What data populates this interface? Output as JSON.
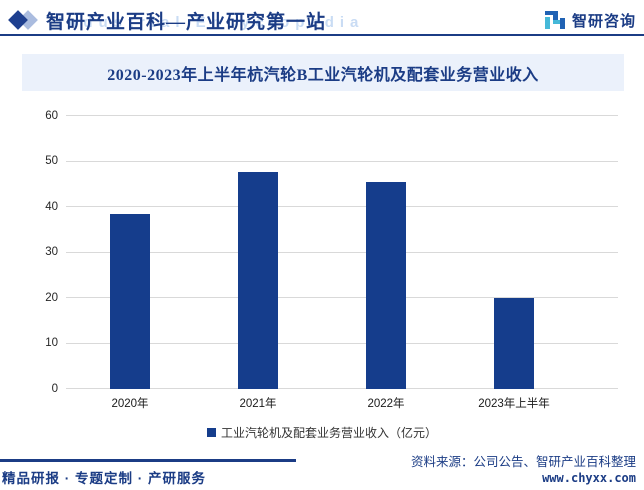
{
  "header": {
    "brand_title": "智研产业百科—产业研究第一站",
    "brand_watermark": "Industrial Encyclopedia",
    "logo_text": "智研咨询"
  },
  "chart_title": "2020-2023年上半年杭汽轮B工业汽轮机及配套业务营业收入",
  "chart_data": {
    "type": "bar",
    "categories": [
      "2020年",
      "2021年",
      "2022年",
      "2023年上半年"
    ],
    "values": [
      38.5,
      47.8,
      45.6,
      20
    ],
    "series_name": "工业汽轮机及配套业务营业收入（亿元）",
    "title": "2020-2023年上半年杭汽轮B工业汽轮机及配套业务营业收入",
    "xlabel": "",
    "ylabel": "",
    "ylim": [
      0,
      60
    ],
    "yticks": [
      0,
      10,
      20,
      30,
      40,
      50,
      60
    ],
    "bar_color": "#153d8c",
    "grid": true,
    "legend_position": "bottom"
  },
  "colors": {
    "accent_navy": "#1b3c85",
    "bar": "#153d8c",
    "gridline": "#d9d9d9",
    "title_box_bg": "#ebf1fb",
    "watermark": "#c9dcf4"
  },
  "footer": {
    "left_text": "精品研报 · 专题定制 · 产研服务",
    "source_text": "资料来源：公司公告、智研产业百科整理",
    "site_url": "www.chyxx.com"
  }
}
